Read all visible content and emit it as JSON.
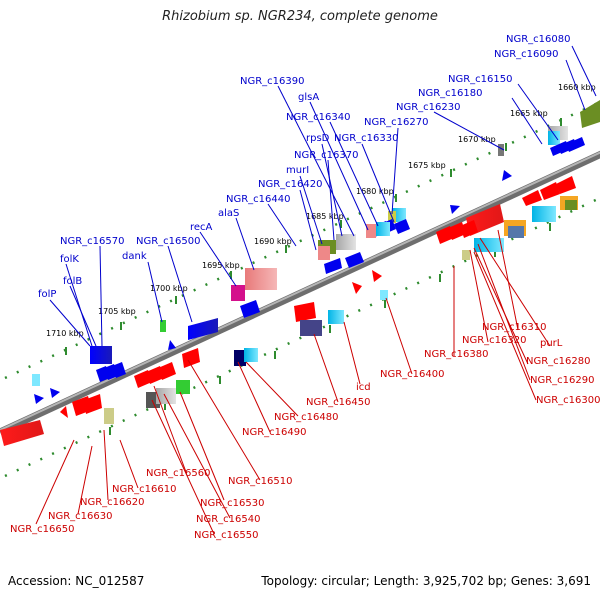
{
  "title": "Rhizobium sp. NGR234, complete genome",
  "footer": {
    "accession": "Accession: NC_012587",
    "topology": "Topology: circular; Length: 3,925,702 bp; Genes: 3,691"
  },
  "colors": {
    "forward_labels": "#0000cc",
    "reverse_labels": "#cc0000",
    "backbone": "#8c8c8c",
    "ticks": "#2e8b2e"
  },
  "kbp_ticks": [
    "1660 kbp",
    "1665 kbp",
    "1670 kbp",
    "1675 kbp",
    "1680 kbp",
    "1685 kbp",
    "1690 kbp",
    "1695 kbp",
    "1700 kbp",
    "1705 kbp",
    "1710 kbp"
  ],
  "forward_genes": [
    "NGR_c16080",
    "NGR_c16090",
    "NGR_c16150",
    "NGR_c16180",
    "NGR_c16230",
    "NGR_c16270",
    "NGR_c16330",
    "NGR_c16340",
    "glsA",
    "NGR_c16390",
    "rpsD",
    "NGR_c16370",
    "murI",
    "NGR_c16420",
    "NGR_c16440",
    "alaS",
    "recA",
    "NGR_c16500",
    "dank",
    "NGR_c16570",
    "folK",
    "folB",
    "folP"
  ],
  "reverse_genes": [
    "NGR_c16310",
    "purL",
    "NGR_c16320",
    "NGR_c16280",
    "NGR_c16380",
    "NGR_c16290",
    "NGR_c16300",
    "NGR_c16400",
    "icd",
    "NGR_c16450",
    "NGR_c16480",
    "NGR_c16490",
    "NGR_c16510",
    "NGR_c16560",
    "NGR_c16610",
    "NGR_c16530",
    "NGR_c16620",
    "NGR_c16540",
    "NGR_c16630",
    "NGR_c16550",
    "NGR_c16650"
  ]
}
